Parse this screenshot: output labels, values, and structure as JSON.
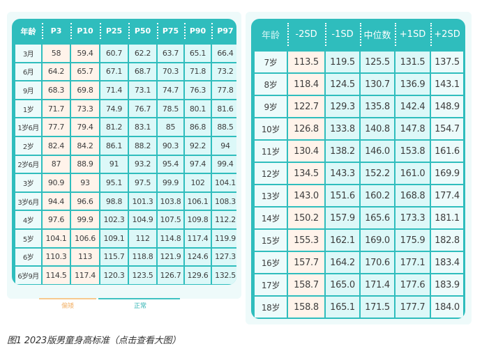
{
  "left_table": {
    "headers": [
      "年龄",
      "P3",
      "P10",
      "P25",
      "P50",
      "P75",
      "P90",
      "P97"
    ],
    "rows": [
      [
        "3月",
        "58",
        "59.4",
        "60.7",
        "62.2",
        "63.7",
        "65.1",
        "66.4"
      ],
      [
        "6月",
        "64.2",
        "65.7",
        "67.1",
        "68.7",
        "70.3",
        "71.8",
        "73.2"
      ],
      [
        "9月",
        "68.3",
        "69.8",
        "71.4",
        "73.1",
        "74.7",
        "76.3",
        "77.8"
      ],
      [
        "1岁",
        "71.7",
        "73.3",
        "74.9",
        "76.7",
        "78.5",
        "80.1",
        "81.6"
      ],
      [
        "1岁6月",
        "77.7",
        "79.4",
        "81.2",
        "83.1",
        "85",
        "86.8",
        "88.5"
      ],
      [
        "2岁",
        "82.4",
        "84.2",
        "86.1",
        "88.2",
        "90.3",
        "92.2",
        "94"
      ],
      [
        "2岁6月",
        "87",
        "88.9",
        "91",
        "93.2",
        "95.4",
        "97.4",
        "99.4"
      ],
      [
        "3岁",
        "90.9",
        "93",
        "95.1",
        "97.5",
        "99.9",
        "102",
        "104.1"
      ],
      [
        "3岁6月",
        "94.4",
        "96.6",
        "98.8",
        "101.3",
        "103.8",
        "106.1",
        "108.3"
      ],
      [
        "4岁",
        "97.6",
        "99.9",
        "102.3",
        "104.9",
        "107.5",
        "109.8",
        "112.2"
      ],
      [
        "5岁",
        "104.1",
        "106.6",
        "109.1",
        "112",
        "114.8",
        "117.4",
        "119.9"
      ],
      [
        "6岁",
        "110.3",
        "113",
        "115.7",
        "118.8",
        "121.9",
        "124.6",
        "127.3"
      ],
      [
        "6岁9月",
        "114.5",
        "117.4",
        "120.3",
        "123.5",
        "126.7",
        "129.6",
        "132.5"
      ]
    ],
    "legend": {
      "low_label": "偏矮",
      "normal_label": "正常"
    }
  },
  "right_table": {
    "headers": [
      "年龄",
      "-2SD",
      "-1SD",
      "中位数",
      "+1SD",
      "+2SD"
    ],
    "rows": [
      [
        "7岁",
        "113.5",
        "119.5",
        "125.5",
        "131.5",
        "137.5"
      ],
      [
        "8岁",
        "118.4",
        "124.5",
        "130.7",
        "136.9",
        "143.1"
      ],
      [
        "9岁",
        "122.7",
        "129.3",
        "135.8",
        "142.4",
        "148.9"
      ],
      [
        "10岁",
        "126.8",
        "133.8",
        "140.8",
        "147.8",
        "154.7"
      ],
      [
        "11岁",
        "130.4",
        "138.2",
        "146.0",
        "153.8",
        "161.6"
      ],
      [
        "12岁",
        "134.5",
        "143.3",
        "152.2",
        "161.0",
        "169.9"
      ],
      [
        "13岁",
        "143.0",
        "151.6",
        "160.2",
        "168.8",
        "177.4"
      ],
      [
        "14岁",
        "150.2",
        "157.9",
        "165.6",
        "173.3",
        "181.1"
      ],
      [
        "15岁",
        "155.3",
        "162.1",
        "169.0",
        "175.9",
        "182.8"
      ],
      [
        "16岁",
        "157.7",
        "164.2",
        "170.6",
        "177.1",
        "183.4"
      ],
      [
        "17岁",
        "158.7",
        "165.0",
        "171.4",
        "177.6",
        "183.9"
      ],
      [
        "18岁",
        "158.8",
        "165.1",
        "171.5",
        "177.7",
        "184.0"
      ]
    ]
  },
  "caption": "图1 2023版男童身高标准（点击查看大图）",
  "colors": {
    "teal": "#2fbdbd",
    "low_cell": "#fff3ea",
    "normal_cell": "#dcf8f8",
    "legend_low": "#f7c98e",
    "legend_normal": "#3ec2c2"
  }
}
